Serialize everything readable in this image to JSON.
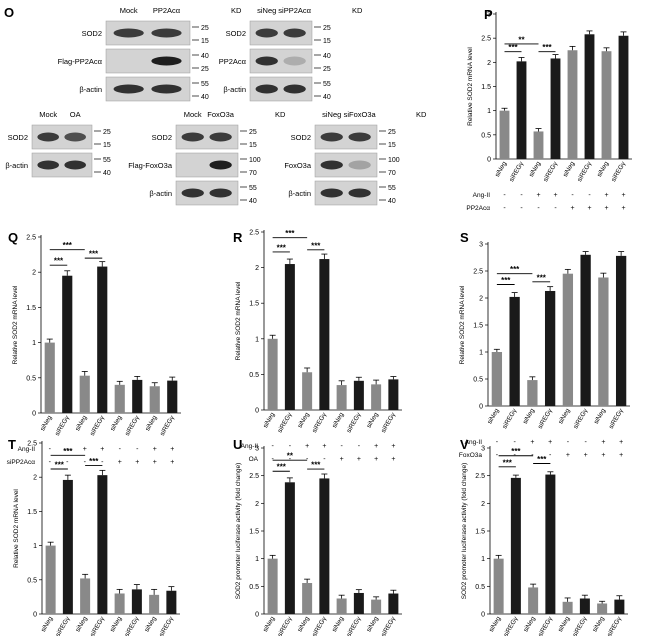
{
  "blots": [
    {
      "panel_letter": "O",
      "lanes": [
        "Mock",
        "PP2Acα"
      ],
      "kd_label": "KD",
      "rows": [
        {
          "label": "SOD2",
          "markers": [
            "25",
            "15"
          ],
          "bands": [
            0.85,
            0.85
          ]
        },
        {
          "label": "Flag-PP2Acα",
          "markers": [
            "40",
            "25"
          ],
          "bands": [
            0.0,
            1.0
          ]
        },
        {
          "label": "β-actin",
          "markers": [
            "55",
            "40"
          ],
          "bands": [
            0.9,
            0.9
          ]
        }
      ]
    },
    {
      "panel_letter": "",
      "lanes": [
        "siNeg",
        "siPP2Acα"
      ],
      "kd_label": "KD",
      "rows": [
        {
          "label": "SOD2",
          "markers": [
            "25",
            "15"
          ],
          "bands": [
            0.85,
            0.85
          ]
        },
        {
          "label": "PP2Acα",
          "markers": [
            "40",
            "25"
          ],
          "bands": [
            0.9,
            0.25
          ]
        },
        {
          "label": "β-actin",
          "markers": [
            "55",
            "40"
          ],
          "bands": [
            0.9,
            0.9
          ]
        }
      ]
    },
    {
      "panel_letter": "",
      "lanes": [
        "Mock",
        "OA"
      ],
      "kd_label": "",
      "rows": [
        {
          "label": "SOD2",
          "markers": [
            "25",
            "15"
          ],
          "bands": [
            0.85,
            0.75
          ]
        },
        {
          "label": "β-actin",
          "markers": [
            "55",
            "40"
          ],
          "bands": [
            0.9,
            0.9
          ]
        }
      ]
    },
    {
      "panel_letter": "",
      "lanes": [
        "Mock",
        "FoxO3a"
      ],
      "kd_label": "KD",
      "rows": [
        {
          "label": "SOD2",
          "markers": [
            "25",
            "15"
          ],
          "bands": [
            0.85,
            0.85
          ]
        },
        {
          "label": "Flag-FoxO3a",
          "markers": [
            "100",
            "70"
          ],
          "bands": [
            0.0,
            1.0
          ]
        },
        {
          "label": "β-actin",
          "markers": [
            "55",
            "40"
          ],
          "bands": [
            0.9,
            0.9
          ]
        }
      ]
    },
    {
      "panel_letter": "",
      "lanes": [
        "siNeg",
        "siFoxO3a"
      ],
      "kd_label": "KD",
      "rows": [
        {
          "label": "SOD2",
          "markers": [
            "25",
            "15"
          ],
          "bands": [
            0.85,
            0.85
          ]
        },
        {
          "label": "FoxO3a",
          "markers": [
            "100",
            "70"
          ],
          "bands": [
            0.9,
            0.3
          ]
        },
        {
          "label": "β-actin",
          "markers": [
            "55",
            "40"
          ],
          "bands": [
            0.9,
            0.9
          ]
        }
      ]
    }
  ],
  "chart_data": [
    {
      "panel": "P",
      "type": "bar",
      "ylabel": "Relative SOD2 mRNA level",
      "ylim": [
        0,
        3
      ],
      "yticks": [
        "0",
        "0.5",
        "1",
        "1.5",
        "2",
        "2.5",
        "3"
      ],
      "categories": [
        "siNeg",
        "siREGγ",
        "siNeg",
        "siREGγ",
        "siNeg",
        "siREGγ",
        "siNeg",
        "siREGγ"
      ],
      "values": [
        1.0,
        2.02,
        0.57,
        2.08,
        2.25,
        2.58,
        2.23,
        2.55
      ],
      "errors": [
        0.05,
        0.08,
        0.06,
        0.08,
        0.08,
        0.07,
        0.07,
        0.08
      ],
      "colors": [
        "#898989",
        "#1a1a1a",
        "#898989",
        "#1a1a1a",
        "#898989",
        "#1a1a1a",
        "#898989",
        "#1a1a1a"
      ],
      "conditions": [
        {
          "label": "Ang-II",
          "values": [
            "-",
            "-",
            "+",
            "+",
            "-",
            "-",
            "+",
            "+"
          ]
        },
        {
          "label": "PP2Acα",
          "values": [
            "-",
            "-",
            "-",
            "-",
            "+",
            "+",
            "+",
            "+"
          ]
        }
      ],
      "significance": [
        {
          "from": 0,
          "to": 1,
          "label": "***",
          "level": 2.22
        },
        {
          "from": 0,
          "to": 2,
          "label": "**",
          "level": 2.38
        },
        {
          "from": 2,
          "to": 3,
          "label": "***",
          "level": 2.22
        }
      ]
    },
    {
      "panel": "Q",
      "type": "bar",
      "ylabel": "Relative SOD2 mRNA level",
      "ylim": [
        0,
        2.5
      ],
      "yticks": [
        "0",
        "0.5",
        "1",
        "1.5",
        "2",
        "2.5"
      ],
      "categories": [
        "siNeg",
        "siREGγ",
        "siNeg",
        "siREGγ",
        "siNeg",
        "siREGγ",
        "siNeg",
        "siREGγ"
      ],
      "values": [
        1.0,
        1.95,
        0.53,
        2.08,
        0.4,
        0.47,
        0.38,
        0.46
      ],
      "errors": [
        0.05,
        0.07,
        0.06,
        0.07,
        0.05,
        0.05,
        0.05,
        0.05
      ],
      "colors": [
        "#898989",
        "#1a1a1a",
        "#898989",
        "#1a1a1a",
        "#898989",
        "#1a1a1a",
        "#898989",
        "#1a1a1a"
      ],
      "conditions": [
        {
          "label": "Ang-II",
          "values": [
            "-",
            "-",
            "+",
            "+",
            "-",
            "-",
            "+",
            "+"
          ]
        },
        {
          "label": "siPP2Acα",
          "values": [
            "-",
            "-",
            "-",
            "-",
            "+",
            "+",
            "+",
            "+"
          ]
        }
      ],
      "significance": [
        {
          "from": 0,
          "to": 1,
          "label": "***",
          "level": 2.1
        },
        {
          "from": 0,
          "to": 2,
          "label": "***",
          "level": 2.32
        },
        {
          "from": 2,
          "to": 3,
          "label": "***",
          "level": 2.2
        }
      ]
    },
    {
      "panel": "R",
      "type": "bar",
      "ylabel": "Relative SOD2 mRNA level",
      "ylim": [
        0,
        2.5
      ],
      "yticks": [
        "0",
        "0.5",
        "1",
        "1.5",
        "2",
        "2.5"
      ],
      "categories": [
        "siNeg",
        "siREGγ",
        "siNeg",
        "siREGγ",
        "siNeg",
        "siREGγ",
        "siNeg",
        "siREGγ"
      ],
      "values": [
        1.0,
        2.05,
        0.53,
        2.12,
        0.35,
        0.41,
        0.36,
        0.43
      ],
      "errors": [
        0.05,
        0.07,
        0.06,
        0.07,
        0.06,
        0.05,
        0.06,
        0.04
      ],
      "colors": [
        "#898989",
        "#1a1a1a",
        "#898989",
        "#1a1a1a",
        "#898989",
        "#1a1a1a",
        "#898989",
        "#1a1a1a"
      ],
      "conditions": [
        {
          "label": "Ang-II",
          "values": [
            "-",
            "-",
            "+",
            "+",
            "-",
            "-",
            "+",
            "+"
          ]
        },
        {
          "label": "OA",
          "values": [
            "-",
            "-",
            "-",
            "-",
            "+",
            "+",
            "+",
            "+"
          ]
        }
      ],
      "significance": [
        {
          "from": 0,
          "to": 1,
          "label": "***",
          "level": 2.22
        },
        {
          "from": 0,
          "to": 2,
          "label": "***",
          "level": 2.42
        },
        {
          "from": 2,
          "to": 3,
          "label": "***",
          "level": 2.25
        }
      ]
    },
    {
      "panel": "S",
      "type": "bar",
      "ylabel": "Relative SOD2 mRNA level",
      "ylim": [
        0,
        3
      ],
      "yticks": [
        "0",
        "0.5",
        "1",
        "1.5",
        "2",
        "2.5",
        "3"
      ],
      "categories": [
        "siNeg",
        "siREGγ",
        "siNeg",
        "siREGγ",
        "siNeg",
        "siREGγ",
        "siNeg",
        "siREGγ"
      ],
      "values": [
        1.0,
        2.02,
        0.48,
        2.13,
        2.45,
        2.8,
        2.38,
        2.78
      ],
      "errors": [
        0.05,
        0.08,
        0.06,
        0.08,
        0.08,
        0.06,
        0.08,
        0.08
      ],
      "colors": [
        "#898989",
        "#1a1a1a",
        "#898989",
        "#1a1a1a",
        "#898989",
        "#1a1a1a",
        "#898989",
        "#1a1a1a"
      ],
      "conditions": [
        {
          "label": "Ang-II",
          "values": [
            "-",
            "-",
            "+",
            "+",
            "-",
            "-",
            "+",
            "+"
          ]
        },
        {
          "label": "FoxO3a",
          "values": [
            "-",
            "-",
            "-",
            "-",
            "+",
            "+",
            "+",
            "+"
          ]
        }
      ],
      "significance": [
        {
          "from": 0,
          "to": 1,
          "label": "***",
          "level": 2.25
        },
        {
          "from": 0,
          "to": 2,
          "label": "***",
          "level": 2.45
        },
        {
          "from": 2,
          "to": 3,
          "label": "***",
          "level": 2.3
        }
      ]
    },
    {
      "panel": "T",
      "type": "bar",
      "ylabel": "Relative SOD2 mRNA level",
      "ylim": [
        0,
        2.5
      ],
      "yticks": [
        "0",
        "0.5",
        "1",
        "1.5",
        "2",
        "2.5"
      ],
      "categories": [
        "siNeg",
        "siREGγ",
        "siNeg",
        "siREGγ",
        "siNeg",
        "siREGγ",
        "siNeg",
        "siREGγ"
      ],
      "values": [
        1.0,
        1.96,
        0.52,
        2.03,
        0.3,
        0.36,
        0.28,
        0.34
      ],
      "errors": [
        0.05,
        0.07,
        0.06,
        0.07,
        0.06,
        0.07,
        0.08,
        0.06
      ],
      "colors": [
        "#898989",
        "#1a1a1a",
        "#898989",
        "#1a1a1a",
        "#898989",
        "#1a1a1a",
        "#898989",
        "#1a1a1a"
      ],
      "conditions": [
        {
          "label": "Ang-II",
          "values": [
            "-",
            "-",
            "+",
            "+",
            "-",
            "-",
            "+",
            "+"
          ]
        },
        {
          "label": "siFoxO3a",
          "values": [
            "-",
            "-",
            "-",
            "-",
            "+",
            "+",
            "+",
            "+"
          ]
        }
      ],
      "significance": [
        {
          "from": 0,
          "to": 1,
          "label": "***",
          "level": 2.12
        },
        {
          "from": 0,
          "to": 2,
          "label": "***",
          "level": 2.32
        },
        {
          "from": 2,
          "to": 3,
          "label": "***",
          "level": 2.17
        }
      ]
    },
    {
      "panel": "U",
      "type": "bar",
      "ylabel": "SOD2 promoter luciferase activity (fold change)",
      "ylim": [
        0,
        3
      ],
      "yticks": [
        "0",
        "0.5",
        "1",
        "1.5",
        "2",
        "2.5",
        "3"
      ],
      "categories": [
        "siNeg",
        "siREGγ",
        "siNeg",
        "siREGγ",
        "siNeg",
        "siREGγ",
        "siNeg",
        "siREGγ"
      ],
      "values": [
        1.0,
        2.38,
        0.56,
        2.45,
        0.28,
        0.38,
        0.26,
        0.37
      ],
      "errors": [
        0.06,
        0.08,
        0.07,
        0.08,
        0.06,
        0.06,
        0.05,
        0.06
      ],
      "colors": [
        "#898989",
        "#1a1a1a",
        "#898989",
        "#1a1a1a",
        "#898989",
        "#1a1a1a",
        "#898989",
        "#1a1a1a"
      ],
      "conditions": [
        {
          "label": "Ang-II",
          "values": [
            "-",
            "-",
            "+",
            "+",
            "-",
            "-",
            "+",
            "+"
          ]
        },
        {
          "label": "siPP2Acα",
          "values": [
            "-",
            "-",
            "-",
            "-",
            "+",
            "+",
            "+",
            "+"
          ]
        }
      ],
      "significance": [
        {
          "from": 0,
          "to": 1,
          "label": "***",
          "level": 2.58
        },
        {
          "from": 0,
          "to": 2,
          "label": "**",
          "level": 2.78
        },
        {
          "from": 2,
          "to": 3,
          "label": "***",
          "level": 2.62
        }
      ]
    },
    {
      "panel": "V",
      "type": "bar",
      "ylabel": "SOD2 promoter luciferase activity (fold change)",
      "ylim": [
        0,
        3
      ],
      "yticks": [
        "0",
        "0.5",
        "1",
        "1.5",
        "2",
        "2.5",
        "3"
      ],
      "categories": [
        "siNeg",
        "siREGγ",
        "siNeg",
        "siREGγ",
        "siNeg",
        "siREGγ",
        "siNeg",
        "siREGγ"
      ],
      "values": [
        1.0,
        2.46,
        0.48,
        2.52,
        0.22,
        0.28,
        0.19,
        0.26
      ],
      "errors": [
        0.06,
        0.05,
        0.06,
        0.05,
        0.07,
        0.06,
        0.04,
        0.07
      ],
      "colors": [
        "#898989",
        "#1a1a1a",
        "#898989",
        "#1a1a1a",
        "#898989",
        "#1a1a1a",
        "#898989",
        "#1a1a1a"
      ],
      "conditions": [
        {
          "label": "Ang-II",
          "values": [
            "-",
            "-",
            "+",
            "+",
            "-",
            "-",
            "+",
            "+"
          ]
        },
        {
          "label": "siFoxO3a",
          "values": [
            "-",
            "-",
            "-",
            "-",
            "+",
            "+",
            "+",
            "+"
          ]
        }
      ],
      "significance": [
        {
          "from": 0,
          "to": 1,
          "label": "***",
          "level": 2.66
        },
        {
          "from": 0,
          "to": 2,
          "label": "***",
          "level": 2.86
        },
        {
          "from": 2,
          "to": 3,
          "label": "***",
          "level": 2.72
        }
      ]
    }
  ]
}
